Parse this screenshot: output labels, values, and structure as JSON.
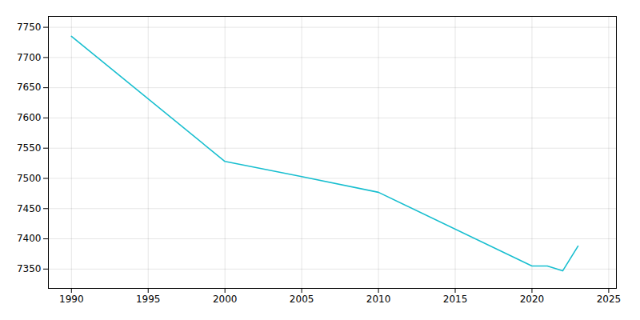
{
  "chart_data": {
    "type": "line",
    "x": [
      1990,
      2000,
      2005,
      2010,
      2020,
      2021,
      2022,
      2023
    ],
    "values": [
      7735,
      7528,
      7503,
      7477,
      7355,
      7355,
      7347,
      7388
    ],
    "color": "#17BECF",
    "xlim": [
      1988.5,
      2025.5
    ],
    "ylim": [
      7318,
      7768
    ],
    "xticks": [
      1990,
      1995,
      2000,
      2005,
      2010,
      2015,
      2020,
      2025
    ],
    "yticks": [
      7350,
      7400,
      7450,
      7500,
      7550,
      7600,
      7650,
      7700,
      7750
    ],
    "grid": true
  }
}
